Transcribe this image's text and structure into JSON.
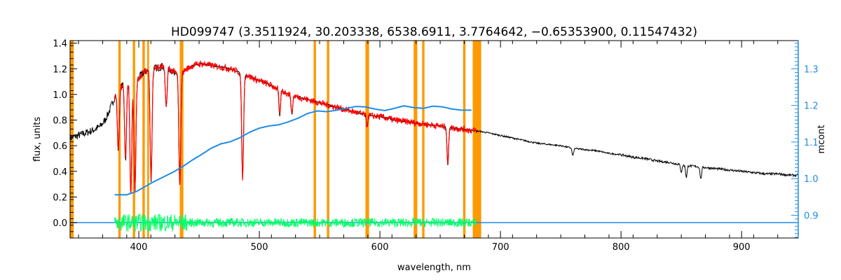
{
  "chart_data": {
    "type": "line",
    "title": "HD099747    (3.3511924, 30.203338, 6538.6911, 3.7764642, −0.65353900, 0.11547432)",
    "xlabel": "wavelength, nm",
    "ylabel": "flux, units",
    "ylabel_right": "mcont",
    "xlim": [
      343,
      947
    ],
    "ylim": [
      -0.12,
      1.42
    ],
    "ylim_right": [
      0.838,
      1.377
    ],
    "x_ticks": [
      400,
      500,
      600,
      700,
      800,
      900
    ],
    "y_ticks": [
      0.0,
      0.2,
      0.4,
      0.6,
      0.8,
      1.0,
      1.2,
      1.4
    ],
    "y_tick_labels": [
      "0.0",
      "0.2",
      "0.4",
      "0.6",
      "0.8",
      "1.0",
      "1.2",
      "1.4"
    ],
    "y_ticks_right": [
      0.9,
      1.0,
      1.1,
      1.2,
      1.3
    ],
    "y_tick_labels_right": [
      "0.9",
      "1.0",
      "1.1",
      "1.2",
      "1.3"
    ],
    "grid": false,
    "colors": {
      "observed": "#000000",
      "model": "#ff0000",
      "residual": "#00ff66",
      "mcont": "#1e8ce6",
      "masks": "#ff9900",
      "axis_right": "#1e8ce6"
    },
    "masked_regions": [
      {
        "from": 343,
        "to": 346
      },
      {
        "from": 383,
        "to": 385
      },
      {
        "from": 395,
        "to": 397
      },
      {
        "from": 403,
        "to": 405
      },
      {
        "from": 407,
        "to": 408.5
      },
      {
        "from": 434,
        "to": 437
      },
      {
        "from": 545,
        "to": 547
      },
      {
        "from": 556,
        "to": 558
      },
      {
        "from": 588,
        "to": 591
      },
      {
        "from": 628,
        "to": 631
      },
      {
        "from": 635,
        "to": 637
      },
      {
        "from": 669,
        "to": 671
      },
      {
        "from": 677,
        "to": 684
      }
    ],
    "series": [
      {
        "role": "observed",
        "x": [
          343,
          350,
          356,
          362,
          368,
          372,
          376,
          380,
          385,
          390,
          394,
          397,
          400,
          404,
          408,
          412,
          416,
          420,
          425,
          430,
          434,
          440,
          446,
          452,
          458,
          464,
          470,
          476,
          482,
          486,
          490,
          496,
          502,
          510,
          518,
          525,
          532,
          540,
          548,
          556,
          564,
          572,
          580,
          588,
          596,
          604,
          612,
          620,
          628,
          636,
          644,
          652,
          660,
          668,
          676,
          684,
          690,
          700,
          710,
          720,
          730,
          740,
          750,
          760,
          770,
          780,
          790,
          800,
          810,
          820,
          830,
          840,
          850,
          860,
          870,
          880,
          890,
          900,
          910,
          920,
          930,
          940,
          947
        ],
        "y": [
          0.66,
          0.68,
          0.7,
          0.72,
          0.75,
          0.8,
          0.88,
          0.98,
          1.06,
          1.1,
          1.12,
          1.1,
          1.13,
          1.17,
          1.19,
          1.2,
          1.21,
          1.22,
          1.2,
          1.17,
          1.16,
          1.2,
          1.23,
          1.24,
          1.23,
          1.22,
          1.21,
          1.2,
          1.18,
          1.16,
          1.15,
          1.12,
          1.1,
          1.07,
          1.03,
          1.0,
          0.98,
          0.96,
          0.94,
          0.92,
          0.9,
          0.88,
          0.86,
          0.84,
          0.83,
          0.82,
          0.8,
          0.79,
          0.78,
          0.77,
          0.76,
          0.75,
          0.74,
          0.73,
          0.72,
          0.71,
          0.7,
          0.68,
          0.66,
          0.64,
          0.62,
          0.61,
          0.6,
          0.58,
          0.57,
          0.56,
          0.54,
          0.53,
          0.51,
          0.5,
          0.48,
          0.47,
          0.45,
          0.44,
          0.43,
          0.42,
          0.41,
          0.4,
          0.39,
          0.38,
          0.38,
          0.37,
          0.37
        ]
      },
      {
        "role": "model",
        "x": [
          380,
          385,
          390,
          394,
          397,
          400,
          404,
          408,
          412,
          416,
          420,
          425,
          430,
          434,
          440,
          446,
          452,
          458,
          464,
          470,
          476,
          482,
          486,
          490,
          496,
          502,
          510,
          518,
          525,
          532,
          540,
          548,
          556,
          564,
          572,
          580,
          588,
          596,
          604,
          612,
          620,
          628,
          636,
          644,
          652,
          660,
          668,
          676,
          680
        ],
        "y": [
          0.98,
          1.06,
          1.1,
          1.12,
          1.1,
          1.13,
          1.17,
          1.19,
          1.2,
          1.21,
          1.22,
          1.2,
          1.17,
          1.16,
          1.2,
          1.23,
          1.24,
          1.23,
          1.22,
          1.21,
          1.2,
          1.18,
          1.16,
          1.15,
          1.12,
          1.1,
          1.07,
          1.03,
          1.0,
          0.98,
          0.96,
          0.94,
          0.92,
          0.9,
          0.88,
          0.86,
          0.84,
          0.83,
          0.82,
          0.8,
          0.79,
          0.78,
          0.77,
          0.76,
          0.75,
          0.74,
          0.73,
          0.72,
          0.72
        ]
      },
      {
        "role": "residual",
        "x": [
          380,
          680
        ],
        "y": [
          0.0,
          0.0
        ]
      },
      {
        "role": "mcont",
        "axis": "right",
        "x": [
          380,
          390,
          398,
          405,
          412,
          420,
          428,
          436,
          444,
          452,
          460,
          468,
          476,
          484,
          492,
          500,
          508,
          516,
          524,
          532,
          540,
          548,
          556,
          564,
          572,
          580,
          588,
          596,
          604,
          612,
          620,
          628,
          636,
          644,
          652,
          660,
          668,
          676
        ],
        "y": [
          0.956,
          0.956,
          0.965,
          0.978,
          0.991,
          1.004,
          1.017,
          1.032,
          1.05,
          1.066,
          1.083,
          1.095,
          1.101,
          1.112,
          1.127,
          1.138,
          1.144,
          1.147,
          1.155,
          1.165,
          1.178,
          1.185,
          1.183,
          1.187,
          1.192,
          1.197,
          1.196,
          1.19,
          1.186,
          1.192,
          1.199,
          1.194,
          1.192,
          1.198,
          1.196,
          1.19,
          1.187,
          1.187
        ]
      }
    ],
    "zero_line": {
      "x": [
        343,
        947
      ],
      "y": [
        0.0,
        0.0
      ]
    },
    "absorption_lines": [
      {
        "x": 383,
        "depth": 0.45
      },
      {
        "x": 389,
        "depth": 0.55
      },
      {
        "x": 393.4,
        "depth": 0.8
      },
      {
        "x": 396.8,
        "depth": 0.78
      },
      {
        "x": 410.2,
        "depth": 0.72
      },
      {
        "x": 422.7,
        "depth": 0.25
      },
      {
        "x": 434.0,
        "depth": 0.75
      },
      {
        "x": 486.1,
        "depth": 0.7
      },
      {
        "x": 516.9,
        "depth": 0.2
      },
      {
        "x": 527.0,
        "depth": 0.15
      },
      {
        "x": 589.3,
        "depth": 0.1
      },
      {
        "x": 656.3,
        "depth": 0.4
      },
      {
        "x": 760.0,
        "depth": 0.1
      },
      {
        "x": 850.0,
        "depth": 0.12
      },
      {
        "x": 854.2,
        "depth": 0.2
      },
      {
        "x": 866.2,
        "depth": 0.22
      }
    ]
  }
}
